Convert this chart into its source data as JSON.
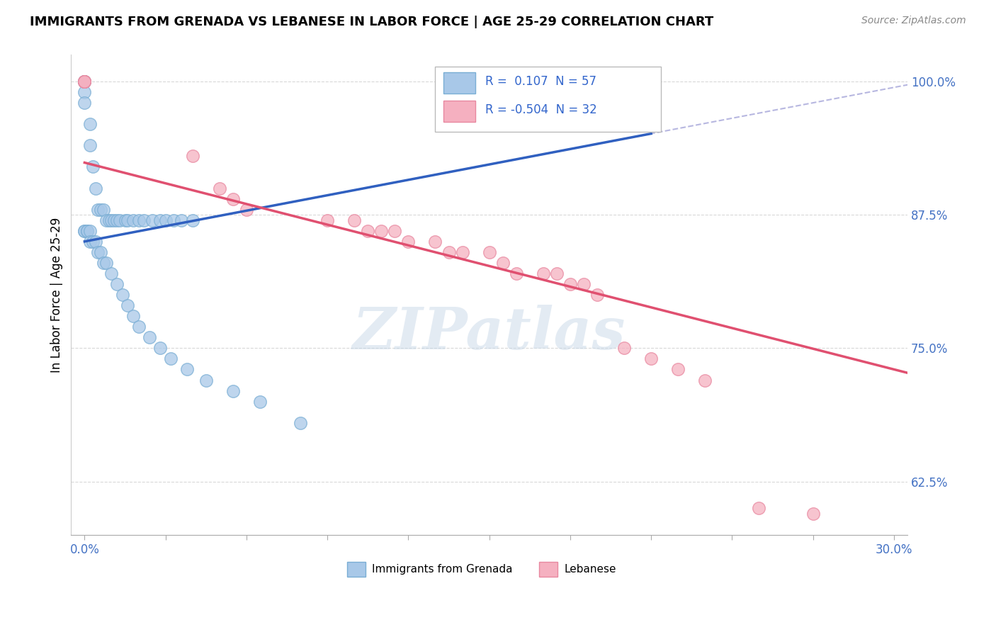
{
  "title": "IMMIGRANTS FROM GRENADA VS LEBANESE IN LABOR FORCE | AGE 25-29 CORRELATION CHART",
  "source": "Source: ZipAtlas.com",
  "ylabel": "In Labor Force | Age 25-29",
  "xlim": [
    -0.005,
    0.305
  ],
  "ylim": [
    0.575,
    1.025
  ],
  "yticks": [
    0.625,
    0.75,
    0.875,
    1.0
  ],
  "ytick_labels": [
    "62.5%",
    "75.0%",
    "87.5%",
    "100.0%"
  ],
  "xticks": [
    0.0,
    0.03,
    0.06,
    0.09,
    0.12,
    0.15,
    0.18,
    0.21,
    0.24,
    0.27,
    0.3
  ],
  "xtick_label_positions": [
    0.0,
    0.3
  ],
  "xtick_labels": [
    "0.0%",
    "30.0%"
  ],
  "grenada_R": 0.107,
  "grenada_N": 57,
  "lebanese_R": -0.504,
  "lebanese_N": 32,
  "grenada_color": "#a8c8e8",
  "grenada_edge_color": "#7aaed4",
  "lebanese_color": "#f5b0c0",
  "lebanese_edge_color": "#e888a0",
  "grenada_line_color": "#3060c0",
  "lebanese_line_color": "#e05070",
  "dashed_line_color": "#8888cc",
  "grenada_scatter_x": [
    0.0,
    0.0,
    0.0,
    0.0,
    0.0,
    0.0,
    0.0,
    0.002,
    0.002,
    0.003,
    0.004,
    0.005,
    0.006,
    0.007,
    0.008,
    0.009,
    0.01,
    0.011,
    0.012,
    0.013,
    0.015,
    0.016,
    0.018,
    0.02,
    0.022,
    0.025,
    0.028,
    0.03,
    0.033,
    0.036,
    0.04,
    0.0,
    0.0,
    0.001,
    0.001,
    0.002,
    0.002,
    0.003,
    0.004,
    0.005,
    0.006,
    0.007,
    0.008,
    0.01,
    0.012,
    0.014,
    0.016,
    0.018,
    0.02,
    0.024,
    0.028,
    0.032,
    0.038,
    0.045,
    0.055,
    0.065,
    0.08
  ],
  "grenada_scatter_y": [
    1.0,
    1.0,
    1.0,
    1.0,
    1.0,
    0.99,
    0.98,
    0.96,
    0.94,
    0.92,
    0.9,
    0.88,
    0.88,
    0.88,
    0.87,
    0.87,
    0.87,
    0.87,
    0.87,
    0.87,
    0.87,
    0.87,
    0.87,
    0.87,
    0.87,
    0.87,
    0.87,
    0.87,
    0.87,
    0.87,
    0.87,
    0.86,
    0.86,
    0.86,
    0.86,
    0.86,
    0.85,
    0.85,
    0.85,
    0.84,
    0.84,
    0.83,
    0.83,
    0.82,
    0.81,
    0.8,
    0.79,
    0.78,
    0.77,
    0.76,
    0.75,
    0.74,
    0.73,
    0.72,
    0.71,
    0.7,
    0.68
  ],
  "lebanese_scatter_x": [
    0.0,
    0.0,
    0.0,
    0.0,
    0.0,
    0.04,
    0.05,
    0.055,
    0.06,
    0.09,
    0.1,
    0.105,
    0.11,
    0.115,
    0.12,
    0.13,
    0.135,
    0.14,
    0.15,
    0.155,
    0.16,
    0.17,
    0.175,
    0.18,
    0.185,
    0.19,
    0.2,
    0.21,
    0.22,
    0.23,
    0.25,
    0.27
  ],
  "lebanese_scatter_y": [
    1.0,
    1.0,
    1.0,
    1.0,
    1.0,
    0.93,
    0.9,
    0.89,
    0.88,
    0.87,
    0.87,
    0.86,
    0.86,
    0.86,
    0.85,
    0.85,
    0.84,
    0.84,
    0.84,
    0.83,
    0.82,
    0.82,
    0.82,
    0.81,
    0.81,
    0.8,
    0.75,
    0.74,
    0.73,
    0.72,
    0.6,
    0.595
  ],
  "watermark": "ZIPatlas",
  "background_color": "#ffffff",
  "grid_color": "#d8d8d8"
}
